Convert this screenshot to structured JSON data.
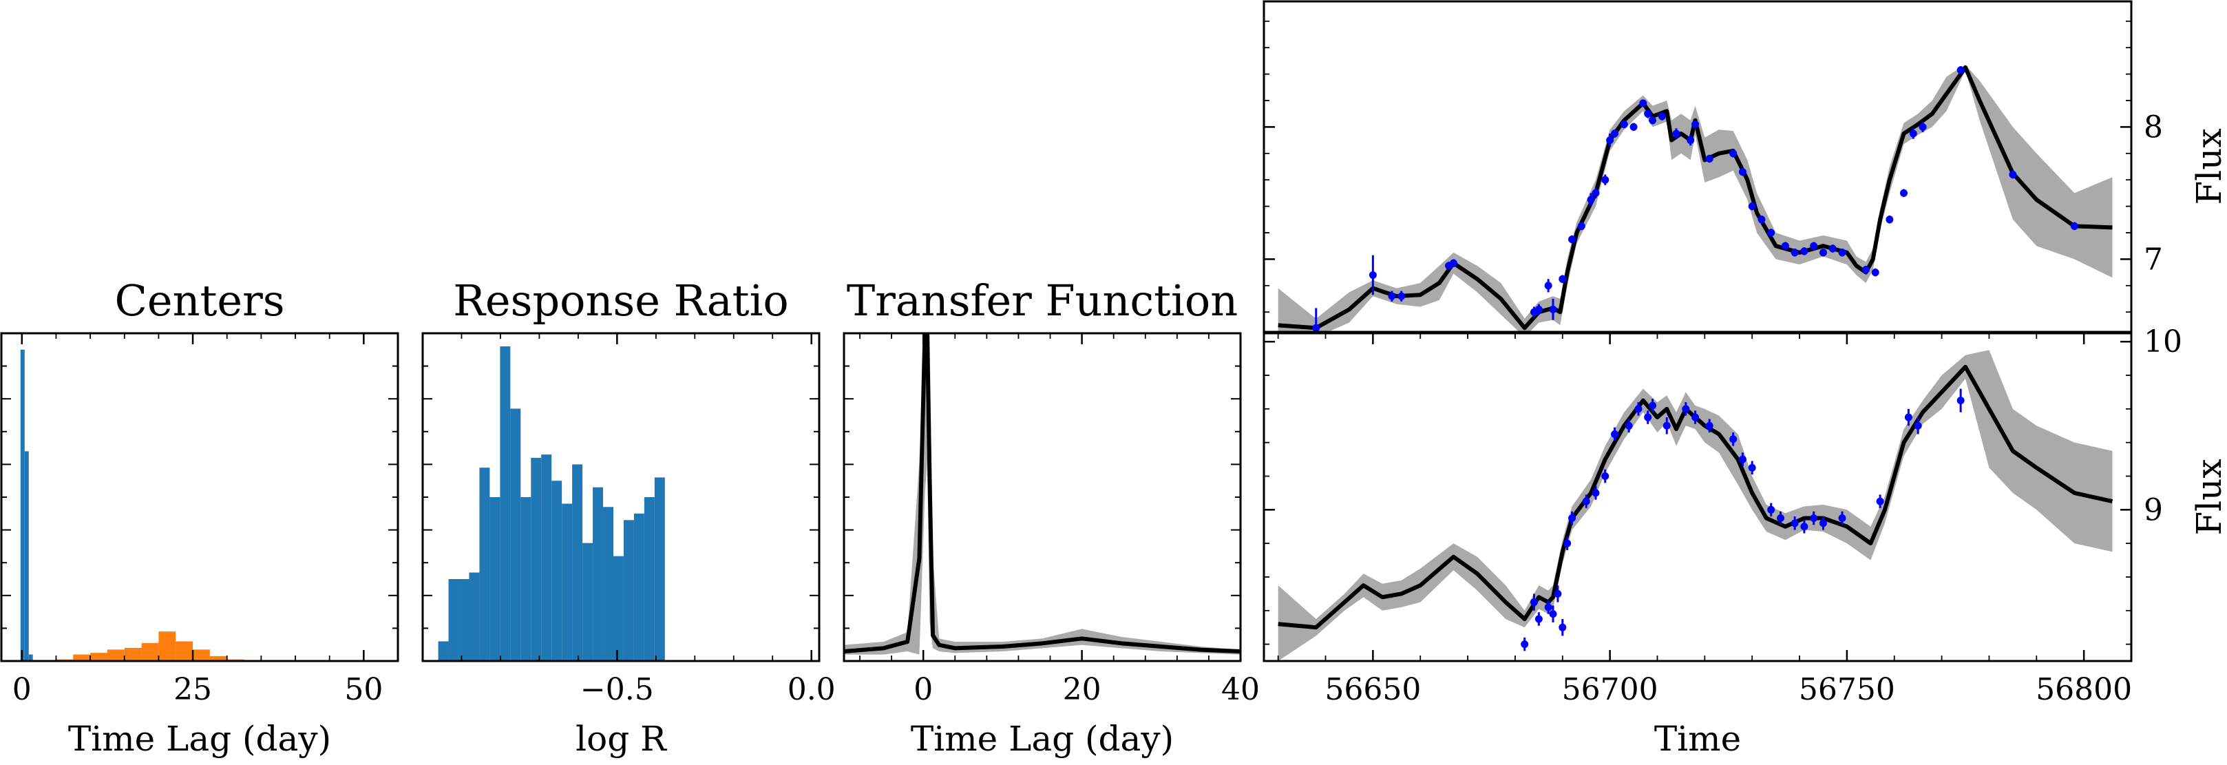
{
  "chart_data": [
    {
      "type": "bar",
      "title": "Centers",
      "xlabel": "Time Lag (day)",
      "ylabel": "",
      "xlim": [
        -3,
        55
      ],
      "ylim": [
        0,
        1.0
      ],
      "xticks": [
        0,
        25,
        50
      ],
      "xtick_labels": [
        "0",
        "25",
        "50"
      ],
      "series": [
        {
          "color": "#1f77b4",
          "bins": [
            [
              -0.2,
              0.4
            ],
            [
              0.4,
              1.0
            ],
            [
              1.0,
              1.6
            ]
          ],
          "values": [
            0.95,
            0.64,
            0.02
          ]
        },
        {
          "color": "#ff7f0e",
          "bins": [
            [
              5,
              7.5
            ],
            [
              7.5,
              10
            ],
            [
              10,
              12.5
            ],
            [
              12.5,
              15
            ],
            [
              15,
              17.5
            ],
            [
              17.5,
              20
            ],
            [
              20,
              22.5
            ],
            [
              22.5,
              25
            ],
            [
              25,
              27.5
            ],
            [
              27.5,
              30
            ],
            [
              30,
              32.5
            ]
          ],
          "values": [
            0.005,
            0.02,
            0.025,
            0.035,
            0.04,
            0.055,
            0.09,
            0.06,
            0.035,
            0.015,
            0.005
          ]
        }
      ]
    },
    {
      "type": "bar",
      "title": "Response Ratio",
      "xlabel": "log R",
      "ylabel": "",
      "xlim": [
        -1.0,
        0.02
      ],
      "ylim": [
        0,
        1.0
      ],
      "xticks": [
        -0.5,
        0.0
      ],
      "xtick_labels": [
        "−0.5",
        "0.0"
      ],
      "series": [
        {
          "color": "#1f77b4",
          "bin_start": -0.96,
          "bin_width": 0.0265,
          "values": [
            0.06,
            0.25,
            0.25,
            0.27,
            0.59,
            0.5,
            0.96,
            0.77,
            0.5,
            0.62,
            0.63,
            0.55,
            0.48,
            0.6,
            0.36,
            0.53,
            0.47,
            0.32,
            0.43,
            0.45,
            0.5,
            0.56
          ]
        }
      ]
    },
    {
      "type": "line",
      "title": "Transfer Function",
      "xlabel": "Time Lag (day)",
      "ylabel": "",
      "xlim": [
        -10,
        40
      ],
      "ylim": [
        -0.02,
        1.0
      ],
      "xticks": [
        0,
        20,
        40
      ],
      "xtick_labels": [
        "0",
        "20",
        "40"
      ],
      "series": [
        {
          "color": "#000000",
          "band_color": "#aaaaaa",
          "x": [
            -10,
            -5,
            -2,
            -0.5,
            0.2,
            0.5,
            0.8,
            1.2,
            2,
            4,
            10,
            15,
            20,
            25,
            30,
            35,
            40
          ],
          "y": [
            0.01,
            0.02,
            0.04,
            0.3,
            1.0,
            1.0,
            0.55,
            0.06,
            0.03,
            0.02,
            0.025,
            0.035,
            0.05,
            0.035,
            0.025,
            0.015,
            0.01
          ],
          "upper": [
            0.03,
            0.04,
            0.07,
            0.6,
            1.0,
            1.0,
            1.0,
            0.3,
            0.05,
            0.04,
            0.04,
            0.05,
            0.08,
            0.055,
            0.04,
            0.025,
            0.015
          ],
          "lower": [
            0.0,
            0.0,
            0.01,
            0.0,
            0.5,
            0.6,
            0.1,
            0.02,
            0.01,
            0.005,
            0.01,
            0.02,
            0.03,
            0.02,
            0.01,
            0.005,
            0.0
          ]
        }
      ]
    },
    {
      "type": "line",
      "title": "",
      "xlabel": "",
      "ylabel": "Flux",
      "xlim": [
        56627,
        56810
      ],
      "ylim": [
        6.45,
        8.95
      ],
      "yticks": [
        7,
        8
      ],
      "ytick_labels": [
        "7",
        "8"
      ],
      "series": [
        {
          "color": "#000000",
          "band_color": "#aaaaaa",
          "x": [
            56630,
            56638,
            56645,
            56650,
            56655,
            56660,
            56664,
            56667,
            56672,
            56677,
            56682,
            56685,
            56688,
            56689.5,
            56691,
            56693,
            56697,
            56700,
            56703,
            56707,
            56709,
            56712,
            56713,
            56715,
            56717,
            56718,
            56720,
            56723,
            56726,
            56729,
            56731,
            56735,
            56740,
            56745,
            56750,
            56752,
            56754,
            56755.5,
            56757,
            56759,
            56762,
            56765,
            56768,
            56771,
            56774,
            56775,
            56778,
            56785,
            56790,
            56798,
            56806
          ],
          "y": [
            6.5,
            6.48,
            6.62,
            6.78,
            6.72,
            6.73,
            6.82,
            6.97,
            6.85,
            6.7,
            6.48,
            6.6,
            6.63,
            6.6,
            6.9,
            7.2,
            7.5,
            7.9,
            8.05,
            8.18,
            8.08,
            8.12,
            7.9,
            7.95,
            7.9,
            8.05,
            7.75,
            7.8,
            7.82,
            7.6,
            7.35,
            7.1,
            7.05,
            7.1,
            7.05,
            6.95,
            6.9,
            7.0,
            7.3,
            7.6,
            7.95,
            8.02,
            8.1,
            8.25,
            8.4,
            8.45,
            8.2,
            7.65,
            7.45,
            7.25,
            7.24
          ],
          "upper": [
            6.78,
            6.55,
            6.75,
            6.84,
            6.78,
            6.82,
            6.95,
            7.05,
            6.95,
            6.82,
            6.55,
            6.68,
            6.72,
            6.7,
            7.0,
            7.28,
            7.6,
            7.98,
            8.12,
            8.24,
            8.16,
            8.2,
            8.05,
            8.1,
            8.05,
            8.16,
            7.92,
            7.98,
            7.97,
            7.75,
            7.5,
            7.2,
            7.14,
            7.18,
            7.14,
            7.02,
            6.98,
            7.08,
            7.38,
            7.7,
            8.03,
            8.1,
            8.2,
            8.38,
            8.45,
            8.47,
            8.35,
            8.0,
            7.8,
            7.5,
            7.62
          ],
          "lower": [
            6.22,
            6.41,
            6.52,
            6.72,
            6.66,
            6.64,
            6.69,
            6.89,
            6.75,
            6.58,
            6.41,
            6.52,
            6.54,
            6.5,
            6.8,
            7.12,
            7.4,
            7.82,
            7.98,
            8.12,
            8.0,
            8.04,
            7.75,
            7.8,
            7.75,
            7.94,
            7.58,
            7.62,
            7.67,
            7.45,
            7.2,
            7.0,
            6.96,
            7.02,
            6.96,
            6.88,
            6.82,
            6.92,
            7.22,
            7.5,
            7.87,
            7.94,
            8.0,
            8.12,
            8.35,
            8.43,
            8.05,
            7.3,
            7.1,
            7.0,
            6.86
          ]
        },
        {
          "color": "#0000ff",
          "marker": "point",
          "x": [
            56638,
            56650,
            56654,
            56656,
            56666,
            56667,
            56684,
            56685,
            56687,
            56688,
            56690,
            56692,
            56694,
            56696,
            56697,
            56699,
            56700,
            56701,
            56703,
            56705,
            56707,
            56708,
            56709,
            56711,
            56714,
            56717,
            56718,
            56721,
            56726,
            56728,
            56730,
            56732,
            56734,
            56737,
            56739,
            56741,
            56743,
            56745,
            56747,
            56749,
            56754,
            56756,
            56759,
            56762,
            56764,
            56766,
            56774,
            56785,
            56798
          ],
          "y": [
            6.48,
            6.88,
            6.72,
            6.72,
            6.95,
            6.97,
            6.6,
            6.62,
            6.8,
            6.62,
            6.85,
            7.15,
            7.25,
            7.45,
            7.5,
            7.6,
            7.9,
            7.95,
            8.02,
            8.0,
            8.18,
            8.1,
            8.05,
            8.08,
            7.95,
            7.9,
            8.02,
            7.76,
            7.8,
            7.66,
            7.4,
            7.3,
            7.2,
            7.1,
            7.05,
            7.06,
            7.1,
            7.05,
            7.08,
            7.05,
            6.92,
            6.9,
            7.3,
            7.5,
            7.95,
            8.0,
            8.43,
            7.64,
            7.25
          ],
          "err": [
            0.15,
            0.15,
            0.04,
            0.04,
            0.03,
            0.03,
            0.04,
            0.04,
            0.05,
            0.08,
            0.03,
            0.03,
            0.03,
            0.05,
            0.04,
            0.04,
            0.05,
            0.03,
            0.03,
            0.03,
            0.02,
            0.03,
            0.03,
            0.03,
            0.04,
            0.04,
            0.03,
            0.03,
            0.03,
            0.03,
            0.03,
            0.03,
            0.03,
            0.03,
            0.03,
            0.03,
            0.03,
            0.03,
            0.03,
            0.03,
            0.03,
            0.03,
            0.03,
            0.03,
            0.04,
            0.04,
            0.03,
            0.03,
            0.03
          ]
        }
      ]
    },
    {
      "type": "line",
      "title": "",
      "xlabel": "Time",
      "ylabel": "Flux",
      "xlim": [
        56627,
        56810
      ],
      "ylim": [
        8.1,
        10.05
      ],
      "xticks": [
        56650,
        56700,
        56750,
        56800
      ],
      "xtick_labels": [
        "56650",
        "56700",
        "56750",
        "56800"
      ],
      "yticks": [
        9,
        10
      ],
      "ytick_labels": [
        "9",
        "10"
      ],
      "series": [
        {
          "color": "#000000",
          "band_color": "#aaaaaa",
          "x": [
            56630,
            56638,
            56644,
            56648,
            56652,
            56656,
            56660,
            56667,
            56672,
            56678,
            56682,
            56685,
            56687,
            56688,
            56690,
            56692,
            56696,
            56699,
            56703,
            56707,
            56710,
            56712,
            56714,
            56716,
            56718,
            56720,
            56723,
            56727,
            56730,
            56733,
            56737,
            56741,
            56745,
            56750,
            56755,
            56758,
            56762,
            56766,
            56770,
            56775,
            56780,
            56785,
            56790,
            56798,
            56806
          ],
          "y": [
            8.32,
            8.3,
            8.45,
            8.55,
            8.48,
            8.5,
            8.55,
            8.72,
            8.62,
            8.45,
            8.35,
            8.48,
            8.45,
            8.48,
            8.75,
            8.95,
            9.1,
            9.3,
            9.5,
            9.65,
            9.55,
            9.6,
            9.48,
            9.6,
            9.55,
            9.5,
            9.45,
            9.3,
            9.1,
            8.95,
            8.9,
            8.95,
            8.95,
            8.9,
            8.8,
            9.0,
            9.4,
            9.58,
            9.7,
            9.85,
            9.6,
            9.35,
            9.25,
            9.1,
            9.05
          ],
          "upper": [
            8.55,
            8.35,
            8.5,
            8.62,
            8.56,
            8.58,
            8.65,
            8.8,
            8.72,
            8.55,
            8.4,
            8.55,
            8.52,
            8.55,
            8.82,
            9.02,
            9.18,
            9.38,
            9.58,
            9.72,
            9.64,
            9.68,
            9.58,
            9.7,
            9.62,
            9.6,
            9.56,
            9.45,
            9.2,
            9.03,
            8.98,
            9.02,
            9.03,
            9.0,
            8.9,
            9.08,
            9.48,
            9.65,
            9.8,
            9.92,
            9.95,
            9.6,
            9.5,
            9.4,
            9.35
          ],
          "lower": [
            8.1,
            8.25,
            8.4,
            8.48,
            8.4,
            8.42,
            8.45,
            8.64,
            8.52,
            8.35,
            8.3,
            8.41,
            8.38,
            8.41,
            8.68,
            8.88,
            9.02,
            9.22,
            9.42,
            9.58,
            9.46,
            9.52,
            9.38,
            9.5,
            9.48,
            9.4,
            9.34,
            9.15,
            9.0,
            8.87,
            8.82,
            8.88,
            8.87,
            8.8,
            8.7,
            8.92,
            9.32,
            9.51,
            9.6,
            9.78,
            9.25,
            9.1,
            9.0,
            8.8,
            8.75
          ]
        },
        {
          "color": "#0000ff",
          "marker": "point",
          "x": [
            56682,
            56684,
            56685,
            56687,
            56688,
            56689,
            56690,
            56691,
            56692,
            56695,
            56697,
            56699,
            56701,
            56704,
            56706,
            56708,
            56709,
            56712,
            56716,
            56718,
            56721,
            56726,
            56728,
            56730,
            56734,
            56736,
            56739,
            56741,
            56743,
            56745,
            56749,
            56757,
            56763,
            56765,
            56774
          ],
          "y": [
            8.2,
            8.45,
            8.35,
            8.42,
            8.38,
            8.5,
            8.3,
            8.8,
            8.95,
            9.05,
            9.1,
            9.2,
            9.45,
            9.5,
            9.6,
            9.55,
            9.62,
            9.5,
            9.6,
            9.55,
            9.5,
            9.42,
            9.3,
            9.25,
            9.0,
            8.95,
            8.92,
            8.9,
            8.95,
            8.92,
            8.95,
            9.05,
            9.55,
            9.5,
            9.65
          ],
          "err": [
            0.04,
            0.05,
            0.04,
            0.04,
            0.05,
            0.05,
            0.05,
            0.04,
            0.04,
            0.04,
            0.04,
            0.04,
            0.04,
            0.04,
            0.04,
            0.04,
            0.04,
            0.05,
            0.04,
            0.04,
            0.04,
            0.04,
            0.04,
            0.04,
            0.04,
            0.04,
            0.04,
            0.04,
            0.04,
            0.04,
            0.04,
            0.04,
            0.05,
            0.05,
            0.07
          ]
        }
      ]
    }
  ]
}
